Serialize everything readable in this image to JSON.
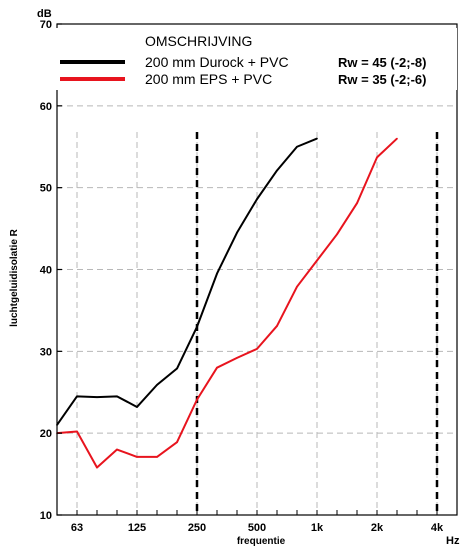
{
  "chart_data": {
    "type": "line",
    "ylabel": "luchtgeluidisolatie R",
    "xlabel": "frequentie",
    "yunit": "dB",
    "xunit": "Hz",
    "ylim": [
      10,
      70
    ],
    "yticks": [
      10,
      20,
      30,
      40,
      50,
      60,
      70
    ],
    "xtick_labels": [
      "63",
      "125",
      "250",
      "500",
      "1k",
      "2k",
      "4k"
    ],
    "x": [
      50,
      63,
      80,
      100,
      125,
      160,
      200,
      250,
      315,
      400,
      500,
      630,
      800,
      1000,
      1250,
      1600,
      2000,
      2500,
      3150,
      4000,
      5000
    ],
    "legend_title": "OMSCHRIJVING",
    "series": [
      {
        "name": "200 mm Durock + PVC",
        "rw_label": "Rw = 45 (-2;-8)",
        "color": "#000000",
        "x": [
          50,
          63,
          80,
          100,
          125,
          160,
          200,
          250,
          315,
          400,
          500,
          630,
          800,
          1000
        ],
        "values": [
          21.0,
          24.5,
          24.4,
          24.5,
          23.2,
          25.9,
          27.9,
          33.0,
          39.5,
          44.5,
          48.6,
          52.1,
          55.0,
          56.0
        ]
      },
      {
        "name": "200 mm EPS + PVC",
        "rw_label": "Rw = 35 (-2;-6)",
        "color": "#e8141e",
        "x": [
          50,
          63,
          80,
          100,
          125,
          160,
          200,
          250,
          315,
          400,
          500,
          630,
          800,
          1000,
          1250,
          1600,
          2000,
          2500
        ],
        "values": [
          20.0,
          20.2,
          15.8,
          18.0,
          17.1,
          17.1,
          18.9,
          24.1,
          28.0,
          29.2,
          30.3,
          33.1,
          37.9,
          41.1,
          44.3,
          48.1,
          53.7,
          56.0
        ]
      }
    ],
    "markers": [
      250,
      4000
    ],
    "grid": true
  }
}
